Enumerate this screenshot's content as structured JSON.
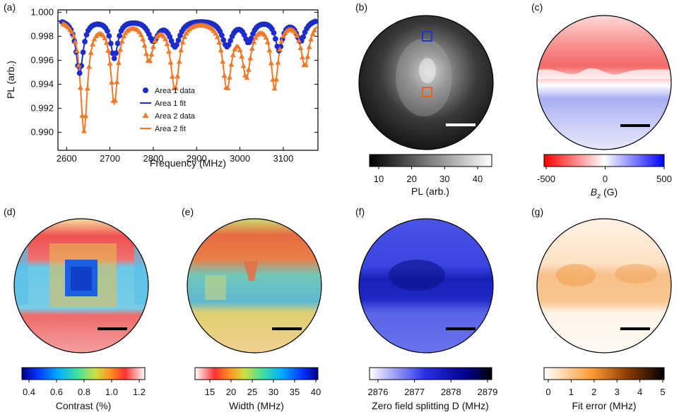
{
  "panel_labels": [
    "(a)",
    "(b)",
    "(c)",
    "(d)",
    "(e)",
    "(f)",
    "(g)"
  ],
  "colors": {
    "area1": "#1b2bd6",
    "area2": "#f07a2a",
    "box_blue": "#1a37d9",
    "box_orange": "#e2632a",
    "scale_bar_white": "#ffffff",
    "scale_bar_black": "#000000"
  },
  "chart_data": [
    {
      "panel": "(a)",
      "type": "line",
      "xlabel": "Frequency (MHz)",
      "ylabel": "PL (arb.)",
      "xlim": [
        2580,
        3180
      ],
      "ylim": [
        0.9885,
        1.0002
      ],
      "xticks": [
        "2600",
        "2700",
        "2800",
        "2900",
        "3000",
        "3100"
      ],
      "yticks": [
        "1.000",
        "0.998",
        "0.996",
        "0.994",
        "0.992",
        "0.990"
      ],
      "legend": {
        "position": "bottom-center"
      },
      "dips": {
        "area1": [
          [
            2630,
            0.0045,
            10
          ],
          [
            2710,
            0.0032,
            10
          ],
          [
            2800,
            0.0017,
            14
          ],
          [
            2850,
            0.0022,
            14
          ],
          [
            2970,
            0.0022,
            14
          ],
          [
            3020,
            0.0018,
            12
          ],
          [
            3090,
            0.0025,
            10
          ],
          [
            3140,
            0.0018,
            12
          ]
        ],
        "area2": [
          [
            2640,
            0.0092,
            10
          ],
          [
            2710,
            0.0068,
            10
          ],
          [
            2790,
            0.0032,
            12
          ],
          [
            2850,
            0.0057,
            12
          ],
          [
            2970,
            0.0055,
            12
          ],
          [
            3015,
            0.0044,
            12
          ],
          [
            3080,
            0.0055,
            10
          ],
          [
            3150,
            0.0038,
            12
          ]
        ]
      },
      "series": [
        {
          "name": "Area 1 data",
          "marker": "circle"
        },
        {
          "name": "Area 1 fit",
          "marker": "line"
        },
        {
          "name": "Area 2 data",
          "marker": "triangle"
        },
        {
          "name": "Area 2 fit",
          "marker": "line"
        }
      ]
    },
    {
      "panel": "(b)",
      "type": "heatmap",
      "colormap": "gray",
      "colorbar_label": "PL (arb.)",
      "colorbar_ticks": [
        "10",
        "20",
        "30",
        "40"
      ]
    },
    {
      "panel": "(c)",
      "type": "heatmap",
      "colormap": "red-white-blue",
      "colorbar_label_main": "B",
      "colorbar_label_sub": "z",
      "colorbar_label_unit": " (G)",
      "colorbar_ticks": [
        "-500",
        "0",
        "500"
      ]
    },
    {
      "panel": "(d)",
      "type": "heatmap",
      "colormap": "jet",
      "colorbar_label": "Contrast (%)",
      "colorbar_ticks": [
        "0.4",
        "0.6",
        "0.8",
        "1.0",
        "1.2"
      ]
    },
    {
      "panel": "(e)",
      "type": "heatmap",
      "colormap": "jet-reversed",
      "colorbar_label": "Width (MHz)",
      "colorbar_ticks": [
        "15",
        "20",
        "25",
        "30",
        "35",
        "40"
      ]
    },
    {
      "panel": "(f)",
      "type": "heatmap",
      "colormap": "white-blue",
      "colorbar_label": "Zero field splitting D (MHz)",
      "colorbar_ticks": [
        "2876",
        "2877",
        "2878",
        "2879"
      ]
    },
    {
      "panel": "(g)",
      "type": "heatmap",
      "colormap": "white-orange-black",
      "colorbar_label": "Fit error (MHz)",
      "colorbar_ticks": [
        "0",
        "1",
        "2",
        "3",
        "4",
        "5"
      ]
    }
  ]
}
